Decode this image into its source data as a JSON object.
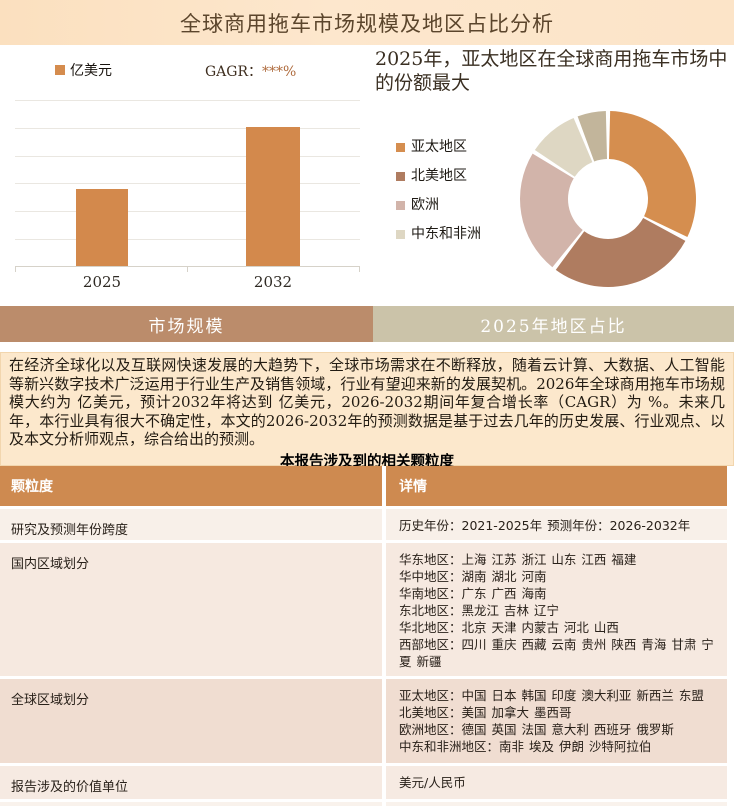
{
  "page_title": "全球商用拖车市场规模及地区占比分析",
  "bar_section": {
    "unit_legend": "亿美元",
    "cagr_label": "GAGR：",
    "cagr_value": "***%"
  },
  "donut_section": {
    "headline": "2025年，亚太地区在全球商用拖车市场中的份额最大"
  },
  "tabs": {
    "left": "市场规模",
    "right": "2025年地区占比"
  },
  "summary": {
    "paragraph": "在经济全球化以及互联网快速发展的大趋势下，全球市场需求在不断释放，随着云计算、大数据、人工智能等新兴数字技术广泛运用于行业生产及销售领域，行业有望迎来新的发展契机。2026年全球商用拖车市场规模大约为 亿美元，预计2032年将达到 亿美元，2026-2032期间年复合增长率（CAGR）为 %。未来几年，本行业具有很大不确定性，本文的2026-2032年的预测数据是基于过去几年的历史发展、行业观点、以及本文分析师观点，综合给出的预测。",
    "table_title": "本报告涉及到的相关颗粒度"
  },
  "table": {
    "headers": [
      "颗粒度",
      "详情"
    ],
    "rows": [
      {
        "label": "研究及预测年份跨度",
        "details": [
          "历史年份：2021-2025年 预测年份：2026-2032年"
        ]
      },
      {
        "label": "国内区域划分",
        "details": [
          "华东地区：上海 江苏 浙江 山东 江西 福建",
          "华中地区：湖南 湖北 河南",
          "华南地区：广东 广西 海南",
          "东北地区：黑龙江 吉林 辽宁",
          "华北地区：北京 天津 内蒙古 河北 山西",
          "西部地区：四川 重庆 西藏 云南 贵州 陕西 青海 甘肃 宁夏 新疆"
        ]
      },
      {
        "label": "全球区域划分",
        "details": [
          "亚太地区：中国 日本 韩国 印度 澳大利亚 新西兰 东盟",
          "北美地区：美国 加拿大 墨西哥",
          "欧洲地区：德国 英国 法国 意大利 西班牙 俄罗斯",
          "中东和非洲地区：南非 埃及 伊朗 沙特阿拉伯"
        ]
      },
      {
        "label": "报告涉及的价值单位",
        "details": [
          "美元/人民币"
        ]
      }
    ]
  },
  "colors": {
    "title_bar_bg": "#fce4c8",
    "accent_orange": "#d3894c",
    "tab_left_bg": "#bb8c6b",
    "tab_right_bg": "#cbc3a9",
    "paragraph_bg": "#fce8cc",
    "table_header_bg": "#ce8a50",
    "row_bgs": [
      "#f8f0e9",
      "#f6e9e0",
      "#f0ddd1",
      "#f6eae2"
    ]
  },
  "chart_data": [
    {
      "type": "bar",
      "title": "",
      "unit": "亿美元",
      "categories": [
        "2025",
        "2032"
      ],
      "values": [
        2.75,
        5
      ],
      "ylim": [
        0,
        6
      ],
      "grid": true,
      "yticks_visible": false,
      "bar_color": "#d3894c",
      "legend": [
        "亿美元"
      ],
      "annotation": "GAGR：***%"
    },
    {
      "type": "pie",
      "subtype": "donut",
      "title": "2025年，亚太地区在全球商用拖车市场中的份额最大",
      "start_angle_deg": 0,
      "direction": "clockwise",
      "legend_position": "left",
      "segments": [
        {
          "label": "亚太地区",
          "value": 32.5,
          "color": "#d58e4f"
        },
        {
          "label": "北美地区",
          "value": 28.0,
          "color": "#af7c60"
        },
        {
          "label": "欧洲",
          "value": 23.5,
          "color": "#d2b4aa"
        },
        {
          "label": "中东和非洲",
          "value": 10.0,
          "color": "#ded7c3"
        },
        {
          "label": "",
          "value": 6.0,
          "color": "#c2b59b"
        }
      ]
    }
  ]
}
